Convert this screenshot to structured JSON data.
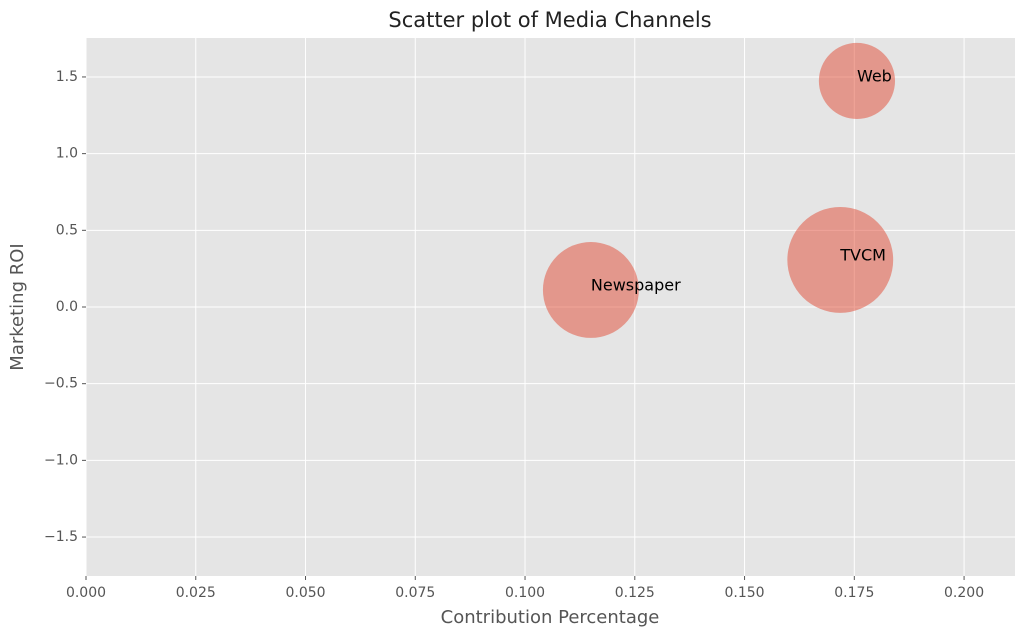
{
  "chart_data": {
    "type": "scatter",
    "title": "Scatter plot of Media Channels",
    "x_label": "Contribution Percentage",
    "y_label": "Marketing ROI",
    "labels": [
      "Newspaper",
      "TVCM",
      "Web"
    ],
    "x": [
      0.115,
      0.1718,
      0.1756
    ],
    "values": [
      0.111,
      0.307,
      1.474
    ],
    "sizes": [
      2300,
      2800,
      1450
    ],
    "color": "#E24A33",
    "xlim": [
      0,
      0.2116
    ],
    "ylim": [
      -1.754,
      1.754
    ],
    "xticks": [
      {
        "value": 0,
        "label": "0.000"
      },
      0.025,
      {
        "value": 0.05,
        "label": "0.050"
      },
      0.075,
      {
        "value": 0.1,
        "label": "0.100"
      },
      0.125,
      {
        "value": 0.15,
        "label": "0.150"
      },
      0.175,
      {
        "value": 0.2,
        "label": "0.200"
      }
    ],
    "yticks": [
      {
        "value": -1.5,
        "label": "−1.5"
      },
      {
        "value": -1,
        "label": "−1.0"
      },
      {
        "value": -0.5,
        "label": "−0.5"
      },
      {
        "value": 0,
        "label": "0.0"
      },
      0.5,
      {
        "value": 1,
        "label": "1.0"
      },
      1.5
    ],
    "grid": true
  }
}
